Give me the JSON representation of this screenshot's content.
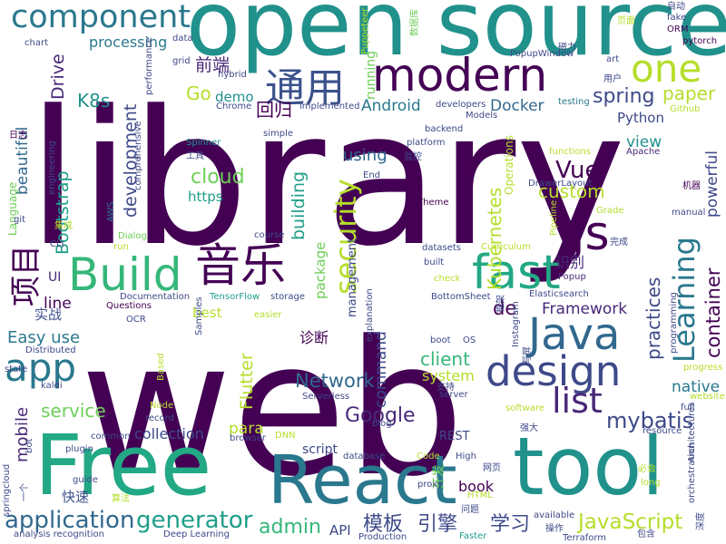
{
  "words": [
    {
      "text": "library",
      "color": "#440154"
    },
    {
      "text": "web",
      "color": "#440154"
    },
    {
      "text": "open source",
      "color": "#21918c"
    },
    {
      "text": "tool",
      "color": "#21918c"
    },
    {
      "text": "Free",
      "color": "#22a884"
    },
    {
      "text": "React",
      "color": "#2a788e"
    },
    {
      "text": "modern",
      "color": "#440154"
    },
    {
      "text": "component",
      "color": "#2a788e"
    },
    {
      "text": "one",
      "color": "#b5de2b"
    },
    {
      "text": "通用",
      "color": "#3b528b"
    },
    {
      "text": "Build",
      "color": "#35b779"
    },
    {
      "text": "音乐",
      "color": "#440154"
    },
    {
      "text": "fast",
      "color": "#22a884"
    },
    {
      "text": "js",
      "color": "#440154"
    },
    {
      "text": "Java",
      "color": "#31688e"
    },
    {
      "text": "design",
      "color": "#3e4989"
    },
    {
      "text": "app",
      "color": "#2a788e"
    },
    {
      "text": "security",
      "color": "#b5de2b"
    },
    {
      "text": "Learning",
      "color": "#2a788e"
    },
    {
      "text": "list",
      "color": "#482878"
    },
    {
      "text": "mybatis",
      "color": "#3e4989"
    },
    {
      "text": "application",
      "color": "#31688e"
    },
    {
      "text": "generator",
      "color": "#1f9e89"
    },
    {
      "text": "admin",
      "color": "#35b779"
    },
    {
      "text": "JavaScript",
      "color": "#b5de2b"
    },
    {
      "text": "Google",
      "color": "#482878"
    },
    {
      "text": "项目",
      "color": "#440154"
    },
    {
      "text": "Vue",
      "color": "#440154"
    },
    {
      "text": "spring",
      "color": "#3e4989"
    },
    {
      "text": "paper",
      "color": "#b5de2b"
    },
    {
      "text": "custom",
      "color": "#b5de2b"
    },
    {
      "text": "client",
      "color": "#35b779"
    },
    {
      "text": "Network",
      "color": "#31688e"
    },
    {
      "text": "service",
      "color": "#6ece58"
    },
    {
      "text": "container",
      "color": "#440154"
    },
    {
      "text": "practices",
      "color": "#3e4989"
    },
    {
      "text": "Kubernetes",
      "color": "#b5de2b"
    },
    {
      "text": "Framework",
      "color": "#482878"
    },
    {
      "text": "Flutter",
      "color": "#b5de2b"
    },
    {
      "text": "building",
      "color": "#1f9e89"
    },
    {
      "text": "Bootstrap",
      "color": "#1f9e89"
    },
    {
      "text": "beautiful",
      "color": "#31688e"
    },
    {
      "text": "development",
      "color": "#3e4989"
    },
    {
      "text": "cloud",
      "color": "#6ece58"
    },
    {
      "text": "command",
      "color": "#3e4989"
    },
    {
      "text": "mobile",
      "color": "#482878"
    },
    {
      "text": "Easy use",
      "color": "#2a788e"
    },
    {
      "text": "模板",
      "color": "#3e4989"
    },
    {
      "text": "引擎",
      "color": "#3e4989"
    },
    {
      "text": "学习",
      "color": "#3e4989"
    },
    {
      "text": "前端",
      "color": "#482878"
    },
    {
      "text": "回归",
      "color": "#440154"
    },
    {
      "text": "Go",
      "color": "#b5de2b"
    },
    {
      "text": "K8s",
      "color": "#21918c"
    },
    {
      "text": "Docker",
      "color": "#31688e"
    },
    {
      "text": "Python",
      "color": "#3e4989"
    },
    {
      "text": "processing",
      "color": "#2a788e"
    },
    {
      "text": "Drive",
      "color": "#482878"
    },
    {
      "text": "demo",
      "color": "#21918c"
    },
    {
      "text": "Android",
      "color": "#2a788e"
    },
    {
      "text": "view",
      "color": "#21918c"
    },
    {
      "text": "powerful",
      "color": "#3e4989"
    },
    {
      "text": "native",
      "color": "#2a788e"
    },
    {
      "text": "book",
      "color": "#440154"
    },
    {
      "text": "para",
      "color": "#b5de2b"
    },
    {
      "text": "line",
      "color": "#440154"
    },
    {
      "text": "collection",
      "color": "#3e4989"
    },
    {
      "text": "package",
      "color": "#6ece58"
    },
    {
      "text": "management",
      "color": "#3e4989"
    },
    {
      "text": "system",
      "color": "#b5de2b"
    },
    {
      "text": "using",
      "color": "#31688e"
    },
    {
      "text": "https",
      "color": "#1f9e89"
    },
    {
      "text": "诊断",
      "color": "#440154"
    },
    {
      "text": "识别",
      "color": "#482878"
    },
    {
      "text": "实战",
      "color": "#3b528b"
    },
    {
      "text": "de",
      "color": "#440154"
    },
    {
      "text": "best",
      "color": "#b5de2b"
    },
    {
      "text": "API",
      "color": "#3e4989"
    },
    {
      "text": "快速",
      "color": "#3b528b"
    },
    {
      "text": "UI",
      "color": "#482878"
    },
    {
      "text": "REST",
      "color": "#3e4989"
    },
    {
      "text": "开发",
      "color": "#6ece58"
    },
    {
      "text": "script",
      "color": "#3e4989"
    },
    {
      "text": "running",
      "color": "#6ece58"
    },
    {
      "text": "Operations",
      "color": "#b5de2b"
    },
    {
      "text": "Language",
      "color": "#6ece58"
    },
    {
      "text": "Chrome",
      "color": "#3e4989"
    },
    {
      "text": "implemented",
      "color": "#3e4989"
    },
    {
      "text": "developers",
      "color": "#3e4989"
    },
    {
      "text": "backend",
      "color": "#3e4989"
    },
    {
      "text": "Spinner",
      "color": "#21918c"
    },
    {
      "text": "platform",
      "color": "#3e4989"
    },
    {
      "text": "Theme",
      "color": "#440154"
    },
    {
      "text": "testing",
      "color": "#2a788e"
    },
    {
      "text": "Github",
      "color": "#b5de2b"
    },
    {
      "text": "functions",
      "color": "#b5de2b"
    },
    {
      "text": "Apache",
      "color": "#482878"
    },
    {
      "text": "Elasticsearch",
      "color": "#3e4989"
    },
    {
      "text": "Popup",
      "color": "#482878"
    },
    {
      "text": "BottomSheet",
      "color": "#3e4989"
    },
    {
      "text": "TensorFlow",
      "color": "#1f9e89"
    },
    {
      "text": "Documentation",
      "color": "#3e4989"
    },
    {
      "text": "Questions",
      "color": "#440154"
    },
    {
      "text": "OCR",
      "color": "#3e4989"
    },
    {
      "text": "Distributed",
      "color": "#3e4989"
    },
    {
      "text": "Serverless",
      "color": "#3e4989"
    },
    {
      "text": "Instagram",
      "color": "#3e4989"
    },
    {
      "text": "Deep Learning",
      "color": "#3e4989"
    },
    {
      "text": "analysis recognition",
      "color": "#3e4989"
    },
    {
      "text": "Production",
      "color": "#3e4989"
    },
    {
      "text": "Faster",
      "color": "#1f9e89"
    },
    {
      "text": "Terraform",
      "color": "#3e4989"
    },
    {
      "text": "orchestration",
      "color": "#3e4989"
    },
    {
      "text": "Architectures",
      "color": "#3e4989"
    },
    {
      "text": "springcloud",
      "color": "#3e4989"
    },
    {
      "text": "chart",
      "color": "#3e4989"
    },
    {
      "text": "data",
      "color": "#3e4989"
    },
    {
      "text": "ORM",
      "color": "#440154"
    },
    {
      "text": "pytorch",
      "color": "#440154"
    },
    {
      "text": "fake",
      "color": "#3e4989"
    },
    {
      "text": "自动",
      "color": "#3e4989"
    },
    {
      "text": "页面",
      "color": "#b5de2b"
    },
    {
      "text": "数据库",
      "color": "#6ece58"
    },
    {
      "text": "Puppeteer",
      "color": "#b5de2b"
    },
    {
      "text": "PopupWindow",
      "color": "#3e4989"
    },
    {
      "text": "磁力",
      "color": "#3e4989"
    },
    {
      "text": "art",
      "color": "#3e4989"
    },
    {
      "text": "用户",
      "color": "#3e4989"
    },
    {
      "text": "grid",
      "color": "#3e4989"
    },
    {
      "text": "hybrid",
      "color": "#3e4989"
    },
    {
      "text": "performance",
      "color": "#3e4989"
    },
    {
      "text": "日志",
      "color": "#440154"
    },
    {
      "text": "engineering",
      "color": "#3e4989"
    },
    {
      "text": "git",
      "color": "#3e4989"
    },
    {
      "text": "CLI",
      "color": "#3e4989"
    },
    {
      "text": "AWS",
      "color": "#2a788e"
    },
    {
      "text": "集成",
      "color": "#b5de2b"
    },
    {
      "text": "Dialog",
      "color": "#6ece58"
    },
    {
      "text": "run",
      "color": "#b5de2b"
    },
    {
      "text": "comprehensive",
      "color": "#3e4989"
    },
    {
      "text": "工具",
      "color": "#3e4989"
    },
    {
      "text": "simple",
      "color": "#3e4989"
    },
    {
      "text": "监控",
      "color": "#3e4989"
    },
    {
      "text": "End",
      "color": "#3e4989"
    },
    {
      "text": "DrawerLayout",
      "color": "#3e4989"
    },
    {
      "text": "Pipeline",
      "color": "#b5de2b"
    },
    {
      "text": "Grade",
      "color": "#b5de2b"
    },
    {
      "text": "完成",
      "color": "#3e4989"
    },
    {
      "text": "机器",
      "color": "#440154"
    },
    {
      "text": "manual",
      "color": "#3e4989"
    },
    {
      "text": "Curriculum",
      "color": "#b5de2b"
    },
    {
      "text": "datasets",
      "color": "#3e4989"
    },
    {
      "text": "built",
      "color": "#3e4989"
    },
    {
      "text": "check",
      "color": "#b5de2b"
    },
    {
      "text": "course",
      "color": "#3e4989"
    },
    {
      "text": "explanation",
      "color": "#3e4989"
    },
    {
      "text": "storage",
      "color": "#3e4989"
    },
    {
      "text": "easier",
      "color": "#b5de2b"
    },
    {
      "text": "框架",
      "color": "#3e4989"
    },
    {
      "text": "programming",
      "color": "#3e4989"
    },
    {
      "text": "Samples",
      "color": "#3e4989"
    },
    {
      "text": "Based",
      "color": "#b5de2b"
    },
    {
      "text": "progress",
      "color": "#b5de2b"
    },
    {
      "text": "website",
      "color": "#b5de2b"
    },
    {
      "text": "full",
      "color": "#3e4989"
    },
    {
      "text": "resource",
      "color": "#3e4989"
    },
    {
      "text": "state",
      "color": "#3e4989"
    },
    {
      "text": "kaldi",
      "color": "#3e4989"
    },
    {
      "text": "Node",
      "color": "#b5de2b"
    },
    {
      "text": "record",
      "color": "#3e4989"
    },
    {
      "text": "DNN",
      "color": "#b5de2b"
    },
    {
      "text": "browser",
      "color": "#3e4989"
    },
    {
      "text": "common",
      "color": "#3e4989"
    },
    {
      "text": "bot",
      "color": "#3e4989"
    },
    {
      "text": "plugin",
      "color": "#3e4989"
    },
    {
      "text": "guide",
      "color": "#3e4989"
    },
    {
      "text": "一个",
      "color": "#3e4989"
    },
    {
      "text": "算法",
      "color": "#b5de2b"
    },
    {
      "text": "database",
      "color": "#3e4989"
    },
    {
      "text": "proxy",
      "color": "#3e4989"
    },
    {
      "text": "High",
      "color": "#3e4989"
    },
    {
      "text": "Code",
      "color": "#b5de2b"
    },
    {
      "text": "网页",
      "color": "#3e4989"
    },
    {
      "text": "HTML",
      "color": "#b5de2b"
    },
    {
      "text": "问题",
      "color": "#3e4989"
    },
    {
      "text": "blog",
      "color": "#3e4989"
    },
    {
      "text": "boot",
      "color": "#3e4989"
    },
    {
      "text": "OS",
      "color": "#3e4989"
    },
    {
      "text": "Models",
      "color": "#3e4989"
    },
    {
      "text": "server",
      "color": "#3e4989"
    },
    {
      "text": "支持",
      "color": "#3e4989"
    },
    {
      "text": "写屏",
      "color": "#3e4989"
    },
    {
      "text": "software",
      "color": "#b5de2b"
    },
    {
      "text": "强大",
      "color": "#3e4989"
    },
    {
      "text": "必会",
      "color": "#b5de2b"
    },
    {
      "text": "long",
      "color": "#b5de2b"
    },
    {
      "text": "available",
      "color": "#3e4989"
    },
    {
      "text": "操作",
      "color": "#3e4989"
    },
    {
      "text": "包含",
      "color": "#3e4989"
    },
    {
      "text": "深度",
      "color": "#3e4989"
    }
  ]
}
